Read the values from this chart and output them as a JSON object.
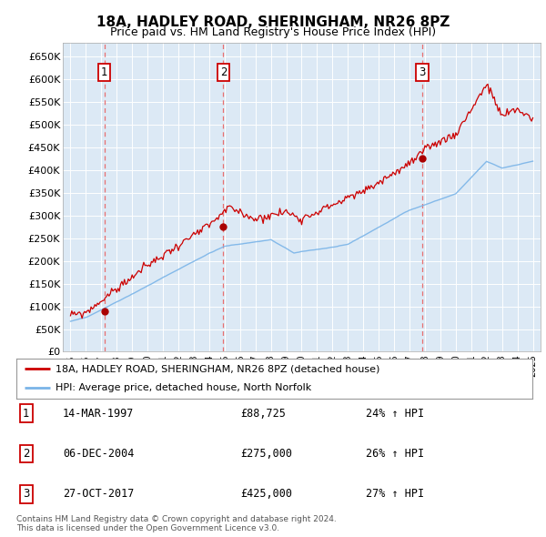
{
  "title": "18A, HADLEY ROAD, SHERINGHAM, NR26 8PZ",
  "subtitle": "Price paid vs. HM Land Registry's House Price Index (HPI)",
  "xlim": [
    1994.5,
    2025.5
  ],
  "ylim": [
    0,
    680000
  ],
  "yticks": [
    0,
    50000,
    100000,
    150000,
    200000,
    250000,
    300000,
    350000,
    400000,
    450000,
    500000,
    550000,
    600000,
    650000
  ],
  "ytick_labels": [
    "£0",
    "£50K",
    "£100K",
    "£150K",
    "£200K",
    "£250K",
    "£300K",
    "£350K",
    "£400K",
    "£450K",
    "£500K",
    "£550K",
    "£600K",
    "£650K"
  ],
  "xtick_years": [
    1995,
    1996,
    1997,
    1998,
    1999,
    2000,
    2001,
    2002,
    2003,
    2004,
    2005,
    2006,
    2007,
    2008,
    2009,
    2010,
    2011,
    2012,
    2013,
    2014,
    2015,
    2016,
    2017,
    2018,
    2019,
    2020,
    2021,
    2022,
    2023,
    2024,
    2025
  ],
  "sale_dates": [
    1997.2,
    2004.92,
    2017.82
  ],
  "sale_prices": [
    88725,
    275000,
    425000
  ],
  "sale_labels": [
    "1",
    "2",
    "3"
  ],
  "sale_table": [
    {
      "num": "1",
      "date": "14-MAR-1997",
      "price": "£88,725",
      "change": "24% ↑ HPI"
    },
    {
      "num": "2",
      "date": "06-DEC-2004",
      "price": "£275,000",
      "change": "26% ↑ HPI"
    },
    {
      "num": "3",
      "date": "27-OCT-2017",
      "price": "£425,000",
      "change": "27% ↑ HPI"
    }
  ],
  "legend_line1": "18A, HADLEY ROAD, SHERINGHAM, NR26 8PZ (detached house)",
  "legend_line2": "HPI: Average price, detached house, North Norfolk",
  "footer1": "Contains HM Land Registry data © Crown copyright and database right 2024.",
  "footer2": "This data is licensed under the Open Government Licence v3.0.",
  "plot_bg_color": "#dce9f5",
  "grid_color": "white",
  "hpi_line_color": "#7ab4e8",
  "price_line_color": "#cc0000",
  "dashed_line_color": "#e87070",
  "dot_color": "#aa0000",
  "box_color": "#cc0000",
  "title_fontsize": 11,
  "subtitle_fontsize": 9
}
